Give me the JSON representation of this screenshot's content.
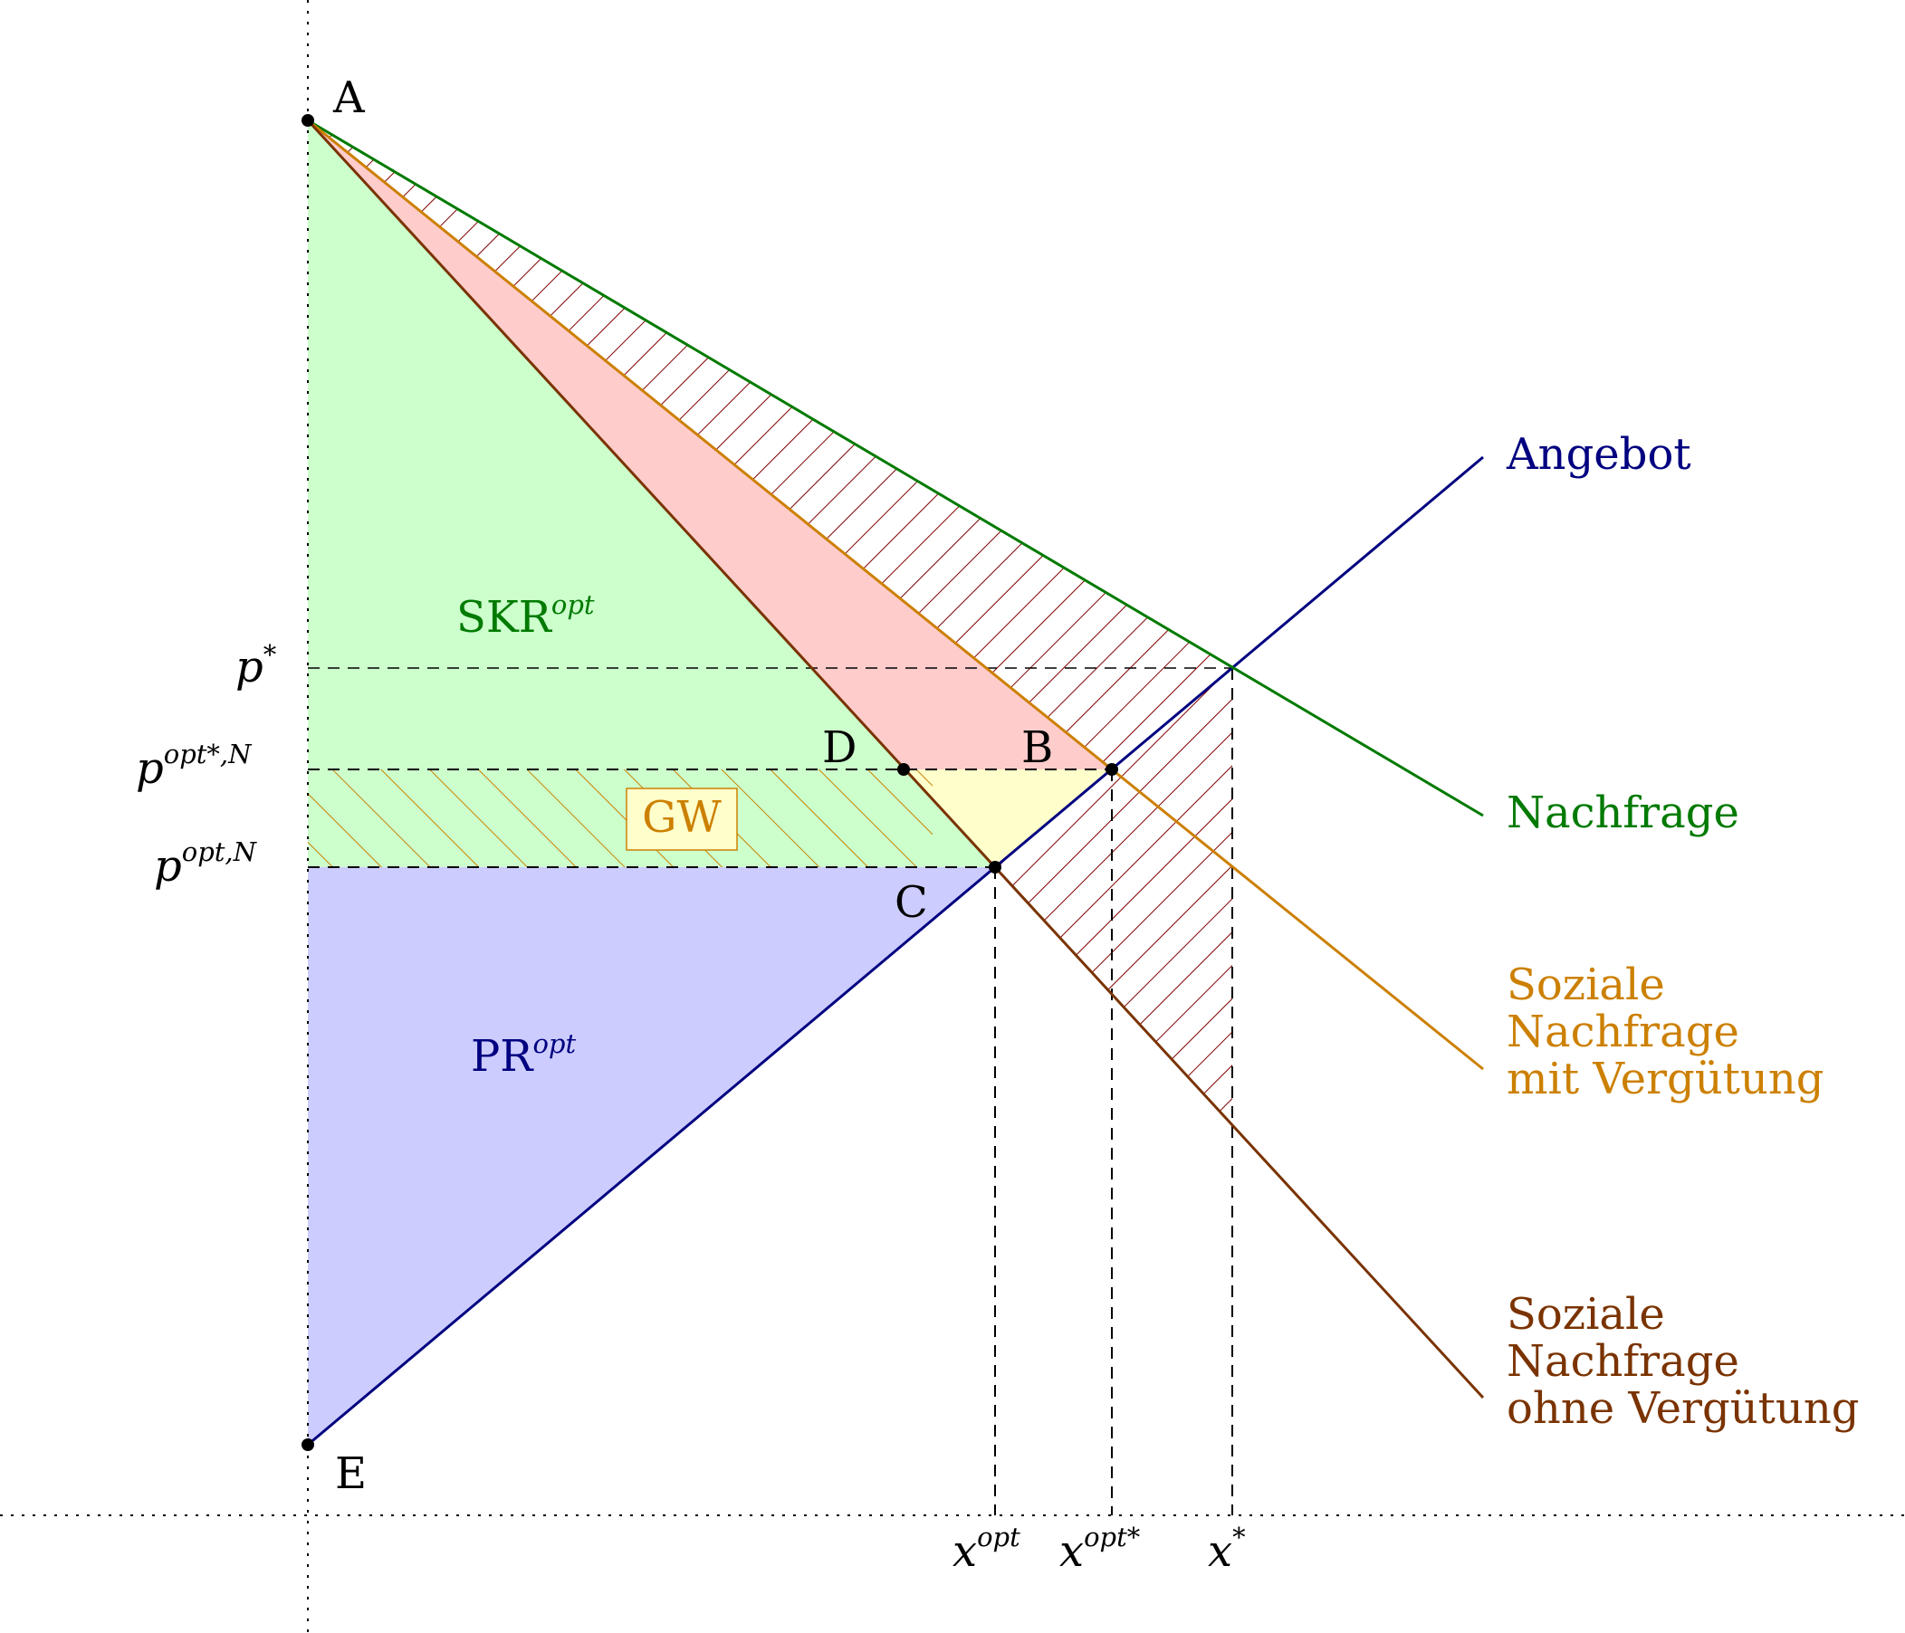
{
  "colors": {
    "green_fill": "#ccffcc",
    "red_fill": "#ffcccc",
    "blue_fill": "#ccccff",
    "yellow_fill": "#ffffcc",
    "supply": "#000080",
    "demand": "#007a00",
    "social_with": "#cc8000",
    "social_without": "#7a3300",
    "hatch_red": "#800000",
    "hatch_orange": "#cc8000"
  },
  "points": {
    "A": "A",
    "B": "B",
    "C": "C",
    "D": "D",
    "E": "E"
  },
  "axis_labels": {
    "p_star": {
      "base": "p",
      "sup": "*"
    },
    "p_opt_star_n": {
      "base": "p",
      "sup": "opt*,N"
    },
    "p_opt_n": {
      "base": "p",
      "sup": "opt,N"
    },
    "x_opt": {
      "base": "x",
      "sup": "opt"
    },
    "x_opt_star": {
      "base": "x",
      "sup": "opt*"
    },
    "x_star": {
      "base": "x",
      "sup": "*"
    }
  },
  "areas": {
    "skr": {
      "base": "SKR",
      "sup": "opt"
    },
    "pr": {
      "base": "PR",
      "sup": "opt"
    },
    "gw": "GW"
  },
  "curves": {
    "angebot": "Angebot",
    "nachfrage": "Nachfrage",
    "social_with": [
      "Soziale",
      "Nachfrage",
      "mit Vergütung"
    ],
    "social_without": [
      "Soziale",
      "Nachfrage",
      "ohne Vergütung"
    ]
  }
}
